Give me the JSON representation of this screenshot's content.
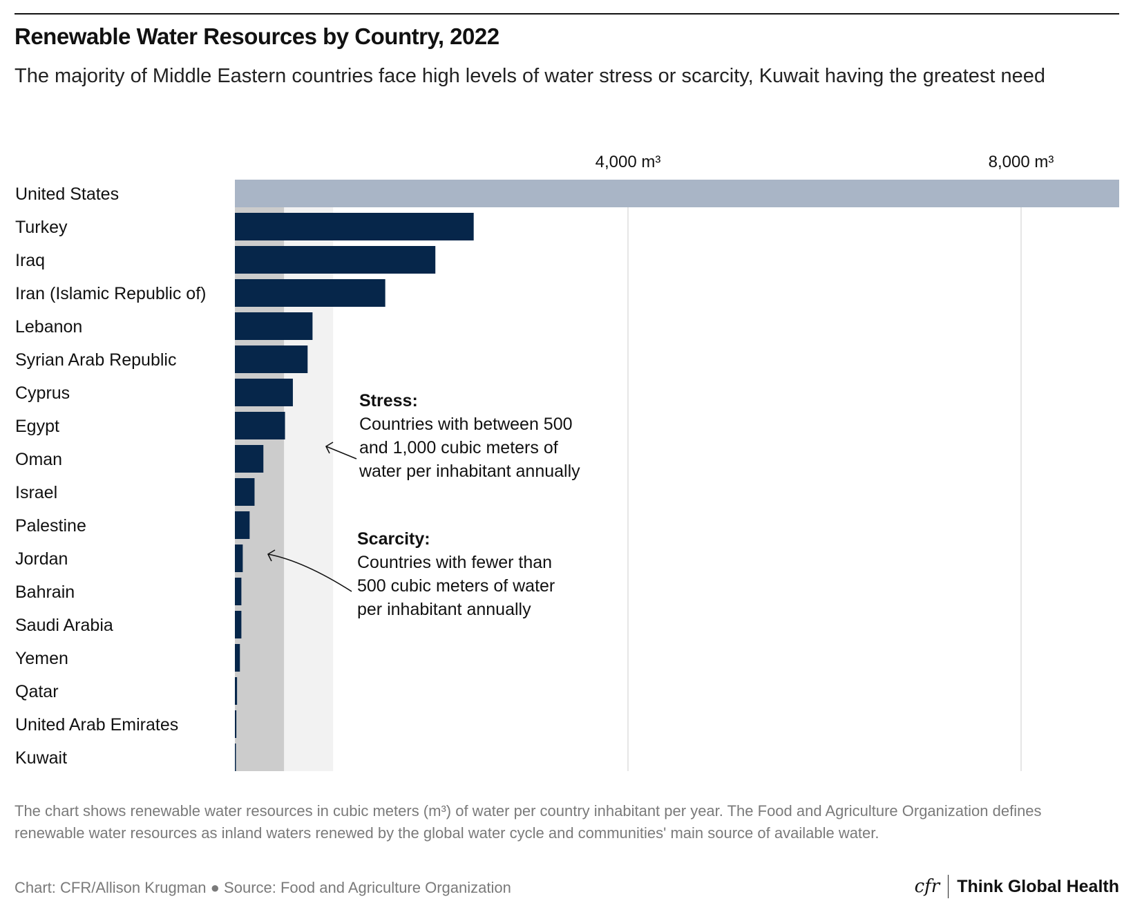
{
  "title": "Renewable Water Resources by Country, 2022",
  "subtitle": "The majority of Middle Eastern countries face high levels of water stress or scarcity, Kuwait having the greatest need",
  "chart_data": {
    "type": "bar",
    "orientation": "horizontal",
    "unit": "m³ per inhabitant per year",
    "categories": [
      "United States",
      "Turkey",
      "Iraq",
      "Iran (Islamic Republic of)",
      "Lebanon",
      "Syrian Arab Republic",
      "Cyprus",
      "Egypt",
      "Oman",
      "Israel",
      "Palestine",
      "Jordan",
      "Bahrain",
      "Saudi Arabia",
      "Yemen",
      "Qatar",
      "United Arab Emirates",
      "Kuwait"
    ],
    "values": [
      9000,
      2430,
      2040,
      1530,
      790,
      740,
      590,
      510,
      290,
      200,
      150,
      80,
      66,
      66,
      51,
      22,
      15,
      5
    ],
    "xlim": [
      0,
      9000
    ],
    "ticks": [
      {
        "value": 4000,
        "label": "4,000 m³"
      },
      {
        "value": 8000,
        "label": "8,000 m³"
      }
    ],
    "grid": true,
    "colors": {
      "highlight": "#a9b5c6",
      "bar": "#06264a",
      "scarcity_band": "#cccccc",
      "stress_band": "#f2f2f2",
      "grid": "#e6e6e6"
    },
    "bands": [
      {
        "from": 0,
        "to": 500,
        "name": "Scarcity"
      },
      {
        "from": 500,
        "to": 1000,
        "name": "Stress"
      }
    ],
    "annotations": [
      {
        "heading": "Stress:",
        "lines": [
          "Countries with between 500",
          "and 1,000 cubic meters of",
          "water per inhabitant annually"
        ]
      },
      {
        "heading": "Scarcity:",
        "lines": [
          "Countries with fewer than",
          "500 cubic meters of water",
          "per inhabitant annually"
        ]
      }
    ]
  },
  "footer": {
    "note": "The chart shows renewable water resources in cubic meters (m³) of water per country inhabitant per year. The Food and Agriculture Organization defines renewable water resources as inland waters renewed by the global water cycle and communities' main source of available water.",
    "credit": "Chart: CFR/Allison Krugman ● Source: Food and Agriculture Organization",
    "logo_cfr": "cfr",
    "logo_text": "Think Global Health"
  }
}
